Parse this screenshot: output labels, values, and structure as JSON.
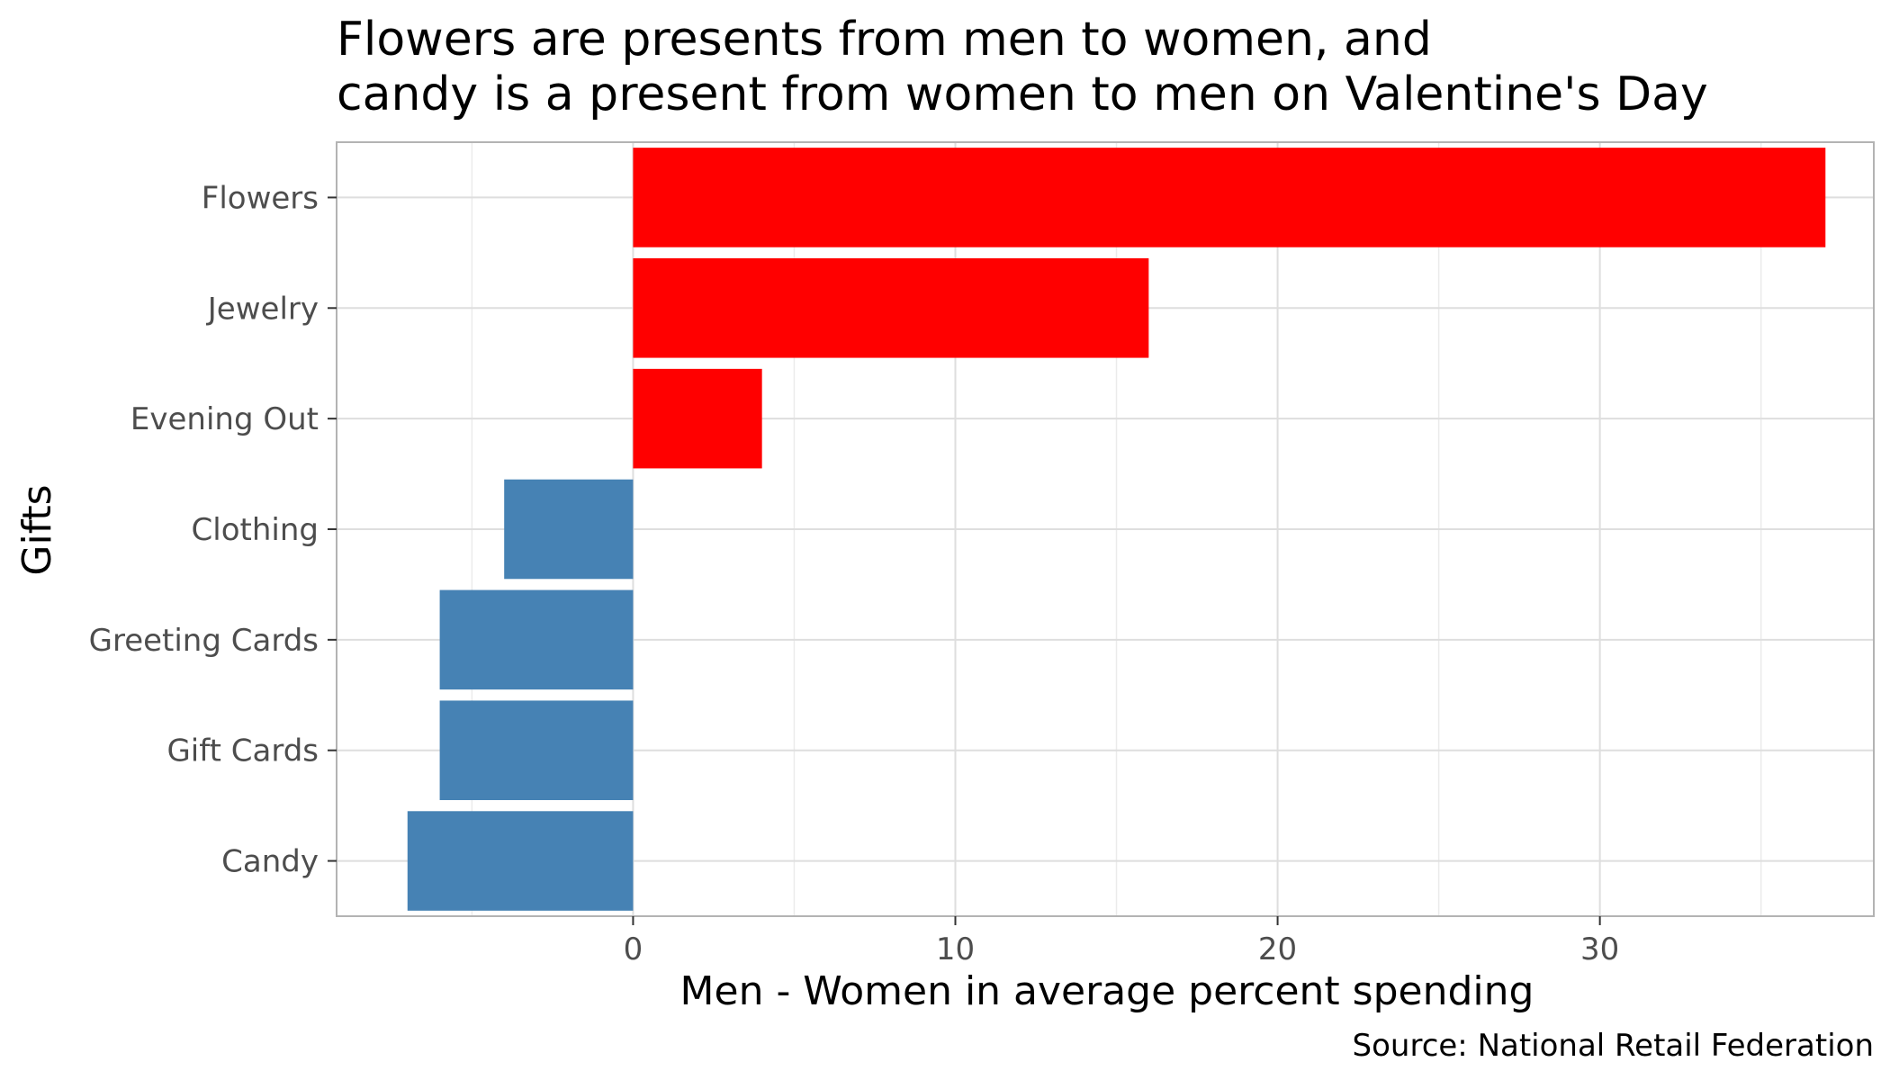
{
  "chart_data": {
    "type": "bar",
    "orientation": "horizontal",
    "title_lines": [
      "Flowers are presents from men to women, and",
      "candy is a present from women to men on Valentine's Day"
    ],
    "xlabel": "Men - Women in average percent spending",
    "ylabel": "Gifts",
    "caption": "Source: National Retail Federation",
    "categories": [
      "Flowers",
      "Jewelry",
      "Evening Out",
      "Clothing",
      "Greeting Cards",
      "Gift Cards",
      "Candy"
    ],
    "values": [
      37,
      16,
      4,
      -4,
      -6,
      -6,
      -7
    ],
    "xlim": [
      -9.2,
      38.5
    ],
    "x_ticks": [
      0,
      10,
      20,
      30
    ],
    "x_tick_labels": [
      "0",
      "10",
      "20",
      "30"
    ],
    "grid": true,
    "legend": "none",
    "colors": {
      "positive": "#ff0000",
      "negative": "#4682b4"
    }
  }
}
